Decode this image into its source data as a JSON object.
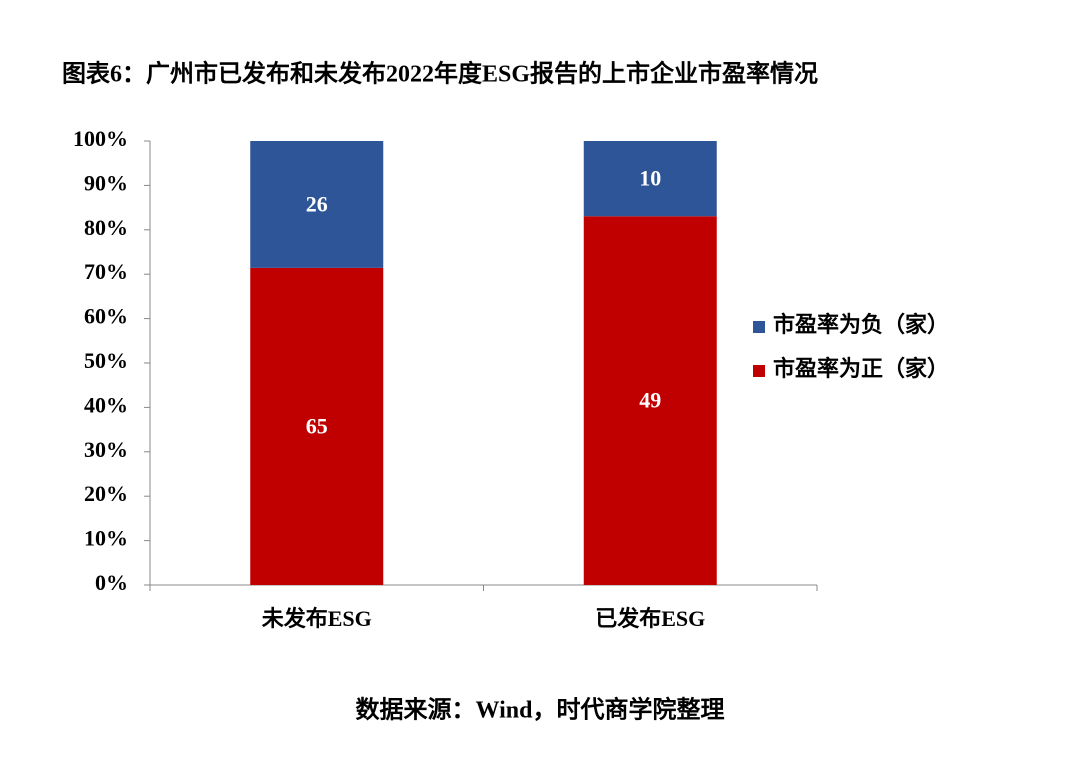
{
  "chart_data": {
    "type": "bar",
    "stacking": "percent",
    "title": "图表6：广州市已发布和未发布2022年度ESG报告的上市企业市盈率情况",
    "source": "数据来源：Wind，时代商学院整理",
    "categories": [
      "未发布ESG",
      "已发布ESG"
    ],
    "series": [
      {
        "name": "市盈率为正（家）",
        "color": "#c00000",
        "values": [
          65,
          49
        ]
      },
      {
        "name": "市盈率为负（家）",
        "color": "#2e5597",
        "values": [
          26,
          10
        ]
      }
    ],
    "ylim": [
      0,
      100
    ],
    "yticks": [
      {
        "value": 0,
        "label": "0%"
      },
      {
        "value": 10,
        "label": "10%"
      },
      {
        "value": 20,
        "label": "20%"
      },
      {
        "value": 30,
        "label": "30%"
      },
      {
        "value": 40,
        "label": "40%"
      },
      {
        "value": 50,
        "label": "50%"
      },
      {
        "value": 60,
        "label": "60%"
      },
      {
        "value": 70,
        "label": "70%"
      },
      {
        "value": 80,
        "label": "80%"
      },
      {
        "value": 90,
        "label": "90%"
      },
      {
        "value": 100,
        "label": "100%"
      }
    ],
    "legend": "right"
  }
}
